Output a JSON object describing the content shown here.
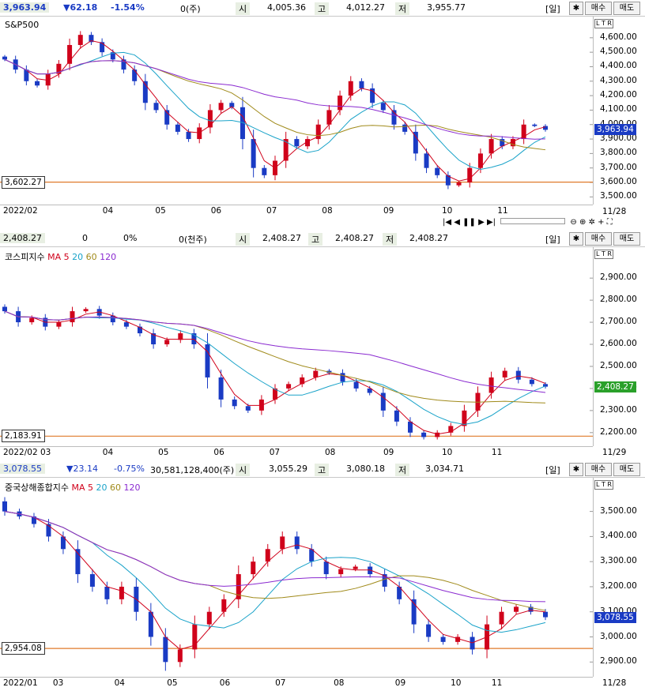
{
  "panels": [
    {
      "id": "sp500",
      "header": {
        "last": "3,963.94",
        "change": "▼62.18",
        "pct": "-1.54%",
        "volume": "0(주)",
        "open_lbl": "시",
        "open": "4,005.36",
        "high_lbl": "고",
        "high": "4,012.27",
        "low_lbl": "저",
        "low": "3,955.77",
        "period_btn": "[일]",
        "settings_btn": "✱",
        "buy_btn": "매수",
        "sell_btn": "매도"
      },
      "title": "S&P500",
      "yticks": [
        "4,600.00",
        "4,500.00",
        "4,400.00",
        "4,300.00",
        "4,200.00",
        "4,100.00",
        "4,000.00",
        "3,900.00",
        "3,800.00",
        "3,700.00",
        "3,600.00",
        "3,500.00"
      ],
      "ymin": 3480,
      "ymax": 4670,
      "xticks": [
        {
          "label": "2022/02",
          "frac": 0.0
        },
        {
          "label": "04",
          "frac": 0.17
        },
        {
          "label": "05",
          "frac": 0.26
        },
        {
          "label": "06",
          "frac": 0.355
        },
        {
          "label": "07",
          "frac": 0.45
        },
        {
          "label": "08",
          "frac": 0.545
        },
        {
          "label": "09",
          "frac": 0.65
        },
        {
          "label": "10",
          "frac": 0.75
        },
        {
          "label": "11",
          "frac": 0.845
        }
      ],
      "xend": "11/28",
      "current": "3,963.94",
      "current_val": 3963.94,
      "hline": "3,602.27",
      "hline_val": 3602.27,
      "tag_color": "#1a3bc4",
      "ltr": "L T R",
      "toolbar": {
        "first": "|◀",
        "prev": "◀",
        "pause": "❚❚",
        "next": "▶",
        "last": "▶|",
        "zoom_out": "⊖",
        "zoom_in": "⊕",
        "gear": "✲",
        "plus": "+",
        "fit": "⛶"
      }
    },
    {
      "id": "kospi",
      "header": {
        "last": "2,408.27",
        "change": "0",
        "pct": "0%",
        "volume": "0(천주)",
        "open_lbl": "시",
        "open": "2,408.27",
        "high_lbl": "고",
        "high": "2,408.27",
        "low_lbl": "저",
        "low": "2,408.27",
        "period_btn": "[일]",
        "settings_btn": "✱",
        "buy_btn": "매수",
        "sell_btn": "매도"
      },
      "title": "코스피지수",
      "legend": {
        "ma": "MA",
        "m5": "5",
        "m20": "20",
        "m60": "60",
        "m120": "120"
      },
      "yticks": [
        "2,900.00",
        "2,800.00",
        "2,700.00",
        "2,600.00",
        "2,500.00",
        "2,400.00",
        "2,300.00",
        "2,200.00"
      ],
      "ymin": 2160,
      "ymax": 2990,
      "xticks": [
        {
          "label": "2022/02 03",
          "frac": 0.0
        },
        {
          "label": "04",
          "frac": 0.17
        },
        {
          "label": "05",
          "frac": 0.265
        },
        {
          "label": "06",
          "frac": 0.36
        },
        {
          "label": "07",
          "frac": 0.455
        },
        {
          "label": "08",
          "frac": 0.55
        },
        {
          "label": "09",
          "frac": 0.65
        },
        {
          "label": "10",
          "frac": 0.75
        },
        {
          "label": "11",
          "frac": 0.835
        }
      ],
      "xend": "11/29",
      "current": "2,408.27",
      "current_val": 2408.27,
      "hline": "2,183.91",
      "hline_val": 2183.91,
      "tag_color": "#2aa02a",
      "ltr": "L T R"
    },
    {
      "id": "shanghai",
      "header": {
        "last": "3,078.55",
        "change": "▼23.14",
        "pct": "-0.75%",
        "volume": "30,581,128,400(주)",
        "open_lbl": "시",
        "open": "3,055.29",
        "high_lbl": "고",
        "high": "3,080.18",
        "low_lbl": "저",
        "low": "3,034.71",
        "period_btn": "[일]",
        "settings_btn": "✱",
        "buy_btn": "매수",
        "sell_btn": "매도"
      },
      "title": "중국상해종합지수",
      "legend": {
        "ma": "MA",
        "m5": "5",
        "m20": "20",
        "m60": "60",
        "m120": "120"
      },
      "yticks": [
        "3,500.00",
        "3,400.00",
        "3,300.00",
        "3,200.00",
        "3,100.00",
        "3,000.00",
        "2,900.00"
      ],
      "ymin": 2860,
      "ymax": 3590,
      "xticks": [
        {
          "label": "2022/01",
          "frac": 0.0
        },
        {
          "label": "03",
          "frac": 0.085
        },
        {
          "label": "04",
          "frac": 0.19
        },
        {
          "label": "05",
          "frac": 0.28
        },
        {
          "label": "06",
          "frac": 0.37
        },
        {
          "label": "07",
          "frac": 0.465
        },
        {
          "label": "08",
          "frac": 0.565
        },
        {
          "label": "09",
          "frac": 0.67
        },
        {
          "label": "10",
          "frac": 0.765
        },
        {
          "label": "11",
          "frac": 0.835
        }
      ],
      "xend": "11/28",
      "current": "3,078.55",
      "current_val": 3078.55,
      "hline": "2,954.08",
      "hline_val": 2954.08,
      "tag_color": "#1a3bc4",
      "ltr": "L T R"
    }
  ],
  "colors": {
    "up": "#d0021b",
    "down": "#1a3bc4",
    "ma5": "#d0021b",
    "ma20": "#1aa3c9",
    "ma60": "#a08a1a",
    "ma120": "#8a2ad0",
    "hline": "#e07a2a"
  },
  "chart_data": [
    {
      "type": "candlestick",
      "title": "S&P500",
      "series_close": [
        4450,
        4380,
        4300,
        4270,
        4350,
        4420,
        4550,
        4620,
        4570,
        4500,
        4450,
        4380,
        4300,
        4150,
        4100,
        4000,
        3950,
        3900,
        3980,
        4100,
        4150,
        4120,
        3900,
        3700,
        3650,
        3750,
        3900,
        3850,
        3900,
        4000,
        4100,
        4200,
        4300,
        4250,
        4150,
        4100,
        4000,
        3950,
        3800,
        3700,
        3650,
        3580,
        3600,
        3700,
        3800,
        3900,
        3850,
        3900,
        4000,
        3990,
        3963.94
      ],
      "ylim": [
        3480,
        4670
      ]
    },
    {
      "type": "candlestick",
      "title": "코스피지수",
      "series_close": [
        2750,
        2700,
        2720,
        2680,
        2700,
        2750,
        2760,
        2730,
        2700,
        2680,
        2650,
        2600,
        2620,
        2650,
        2600,
        2450,
        2350,
        2320,
        2300,
        2350,
        2400,
        2420,
        2450,
        2480,
        2470,
        2430,
        2400,
        2380,
        2300,
        2250,
        2200,
        2180,
        2200,
        2230,
        2300,
        2380,
        2450,
        2480,
        2440,
        2420,
        2408.27
      ],
      "ylim": [
        2160,
        2990
      ]
    },
    {
      "type": "candlestick",
      "title": "중국상해종합지수",
      "series_close": [
        3500,
        3480,
        3450,
        3400,
        3350,
        3250,
        3200,
        3150,
        3200,
        3100,
        3000,
        2900,
        2950,
        3050,
        3100,
        3150,
        3250,
        3300,
        3350,
        3400,
        3350,
        3300,
        3250,
        3270,
        3280,
        3250,
        3200,
        3150,
        3050,
        3000,
        2980,
        3000,
        2950,
        3050,
        3100,
        3120,
        3100,
        3078.55
      ],
      "ylim": [
        2860,
        3590
      ]
    }
  ]
}
